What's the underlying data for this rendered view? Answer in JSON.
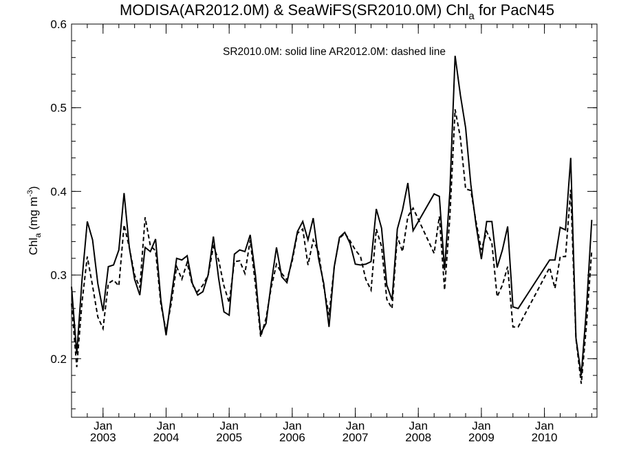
{
  "chart_data": {
    "type": "line",
    "title": {
      "prefix": "MODISA(AR2012.0M) & SeaWiFS(SR2010.0M)  Chl",
      "sub": "a",
      "suffix": " for PacN45"
    },
    "ylabel": {
      "main": "Chl",
      "sub": "a",
      "unit": " (mg m",
      "sup": "-3",
      "close": ")"
    },
    "annotation": "SR2010.0M: solid line   AR2012.0M: dashed line",
    "ylim": [
      0.13,
      0.6
    ],
    "yticks": [
      0.2,
      0.3,
      0.4,
      0.5,
      0.6
    ],
    "ytick_labels": [
      "0.2",
      "0.3",
      "0.4",
      "0.5",
      "0.6"
    ],
    "xlim": [
      "2002-07",
      "2010-11"
    ],
    "xticks": [
      {
        "month": "Jan",
        "year": "2003",
        "date": "2003-01"
      },
      {
        "month": "Jan",
        "year": "2004",
        "date": "2004-01"
      },
      {
        "month": "Jan",
        "year": "2005",
        "date": "2005-01"
      },
      {
        "month": "Jan",
        "year": "2006",
        "date": "2006-01"
      },
      {
        "month": "Jan",
        "year": "2007",
        "date": "2007-01"
      },
      {
        "month": "Jan",
        "year": "2008",
        "date": "2008-01"
      },
      {
        "month": "Jan",
        "year": "2009",
        "date": "2009-01"
      },
      {
        "month": "Jan",
        "year": "2010",
        "date": "2010-01"
      }
    ],
    "series": [
      {
        "name": "SR2010.0M",
        "style": "solid",
        "color": "#000000",
        "points": [
          [
            "2002-07",
            0.286
          ],
          [
            "2002-08",
            0.206
          ],
          [
            "2002-09",
            0.295
          ],
          [
            "2002-10",
            0.364
          ],
          [
            "2002-11",
            0.342
          ],
          [
            "2002-12",
            0.29
          ],
          [
            "2003-01",
            0.257
          ],
          [
            "2003-02",
            0.31
          ],
          [
            "2003-03",
            0.312
          ],
          [
            "2003-04",
            0.33
          ],
          [
            "2003-05",
            0.398
          ],
          [
            "2003-06",
            0.333
          ],
          [
            "2003-07",
            0.295
          ],
          [
            "2003-08",
            0.276
          ],
          [
            "2003-09",
            0.333
          ],
          [
            "2003-10",
            0.328
          ],
          [
            "2003-11",
            0.343
          ],
          [
            "2003-12",
            0.27
          ],
          [
            "2004-01",
            0.228
          ],
          [
            "2004-02",
            0.275
          ],
          [
            "2004-03",
            0.32
          ],
          [
            "2004-04",
            0.318
          ],
          [
            "2004-05",
            0.323
          ],
          [
            "2004-06",
            0.29
          ],
          [
            "2004-07",
            0.276
          ],
          [
            "2004-08",
            0.28
          ],
          [
            "2004-09",
            0.3
          ],
          [
            "2004-10",
            0.346
          ],
          [
            "2004-11",
            0.296
          ],
          [
            "2004-12",
            0.256
          ],
          [
            "2005-01",
            0.252
          ],
          [
            "2005-02",
            0.325
          ],
          [
            "2005-03",
            0.33
          ],
          [
            "2005-04",
            0.328
          ],
          [
            "2005-05",
            0.348
          ],
          [
            "2005-06",
            0.3
          ],
          [
            "2005-07",
            0.23
          ],
          [
            "2005-08",
            0.242
          ],
          [
            "2005-09",
            0.29
          ],
          [
            "2005-10",
            0.333
          ],
          [
            "2005-11",
            0.298
          ],
          [
            "2005-12",
            0.291
          ],
          [
            "2006-01",
            0.32
          ],
          [
            "2006-02",
            0.352
          ],
          [
            "2006-03",
            0.364
          ],
          [
            "2006-04",
            0.342
          ],
          [
            "2006-05",
            0.368
          ],
          [
            "2006-06",
            0.32
          ],
          [
            "2006-07",
            0.29
          ],
          [
            "2006-08",
            0.238
          ],
          [
            "2006-09",
            0.31
          ],
          [
            "2006-10",
            0.345
          ],
          [
            "2006-11",
            0.351
          ],
          [
            "2006-12",
            0.338
          ],
          [
            "2007-01",
            0.313
          ],
          [
            "2007-02",
            0.312
          ],
          [
            "2007-03",
            0.313
          ],
          [
            "2007-04",
            0.316
          ],
          [
            "2007-05",
            0.379
          ],
          [
            "2007-06",
            0.356
          ],
          [
            "2007-07",
            0.288
          ],
          [
            "2007-08",
            0.27
          ],
          [
            "2007-09",
            0.355
          ],
          [
            "2007-10",
            0.378
          ],
          [
            "2007-11",
            0.41
          ],
          [
            "2007-12",
            0.353
          ],
          [
            "2008-04",
            0.397
          ],
          [
            "2008-05",
            0.394
          ],
          [
            "2008-06",
            0.306
          ],
          [
            "2008-07",
            0.4
          ],
          [
            "2008-08",
            0.562
          ],
          [
            "2008-09",
            0.515
          ],
          [
            "2008-10",
            0.476
          ],
          [
            "2008-11",
            0.408
          ],
          [
            "2008-12",
            0.359
          ],
          [
            "2009-01",
            0.319
          ],
          [
            "2009-02",
            0.364
          ],
          [
            "2009-03",
            0.364
          ],
          [
            "2009-04",
            0.309
          ],
          [
            "2009-05",
            0.33
          ],
          [
            "2009-06",
            0.358
          ],
          [
            "2009-07",
            0.262
          ],
          [
            "2009-08",
            0.26
          ],
          [
            "2010-02",
            0.318
          ],
          [
            "2010-03",
            0.318
          ],
          [
            "2010-04",
            0.357
          ],
          [
            "2010-05",
            0.354
          ],
          [
            "2010-06",
            0.44
          ],
          [
            "2010-07",
            0.225
          ],
          [
            "2010-08",
            0.18
          ],
          [
            "2010-09",
            0.26
          ],
          [
            "2010-10",
            0.366
          ]
        ]
      },
      {
        "name": "AR2012.0M",
        "style": "dashed",
        "color": "#000000",
        "points": [
          [
            "2002-07",
            0.266
          ],
          [
            "2002-08",
            0.19
          ],
          [
            "2002-09",
            0.268
          ],
          [
            "2002-10",
            0.322
          ],
          [
            "2002-11",
            0.287
          ],
          [
            "2002-12",
            0.25
          ],
          [
            "2003-01",
            0.236
          ],
          [
            "2003-02",
            0.29
          ],
          [
            "2003-03",
            0.294
          ],
          [
            "2003-04",
            0.287
          ],
          [
            "2003-05",
            0.36
          ],
          [
            "2003-06",
            0.333
          ],
          [
            "2003-07",
            0.3
          ],
          [
            "2003-08",
            0.285
          ],
          [
            "2003-09",
            0.369
          ],
          [
            "2003-10",
            0.335
          ],
          [
            "2003-11",
            0.329
          ],
          [
            "2003-12",
            0.265
          ],
          [
            "2004-01",
            0.233
          ],
          [
            "2004-02",
            0.267
          ],
          [
            "2004-03",
            0.31
          ],
          [
            "2004-04",
            0.295
          ],
          [
            "2004-05",
            0.315
          ],
          [
            "2004-06",
            0.288
          ],
          [
            "2004-07",
            0.28
          ],
          [
            "2004-08",
            0.288
          ],
          [
            "2004-09",
            0.3
          ],
          [
            "2004-10",
            0.334
          ],
          [
            "2004-11",
            0.318
          ],
          [
            "2004-12",
            0.287
          ],
          [
            "2005-01",
            0.267
          ],
          [
            "2005-02",
            0.316
          ],
          [
            "2005-03",
            0.317
          ],
          [
            "2005-04",
            0.302
          ],
          [
            "2005-05",
            0.342
          ],
          [
            "2005-06",
            0.288
          ],
          [
            "2005-07",
            0.226
          ],
          [
            "2005-08",
            0.248
          ],
          [
            "2005-09",
            0.285
          ],
          [
            "2005-10",
            0.313
          ],
          [
            "2005-11",
            0.302
          ],
          [
            "2005-12",
            0.294
          ],
          [
            "2006-01",
            0.317
          ],
          [
            "2006-02",
            0.35
          ],
          [
            "2006-03",
            0.355
          ],
          [
            "2006-04",
            0.312
          ],
          [
            "2006-05",
            0.342
          ],
          [
            "2006-06",
            0.328
          ],
          [
            "2006-07",
            0.286
          ],
          [
            "2006-08",
            0.252
          ],
          [
            "2006-09",
            0.31
          ],
          [
            "2006-10",
            0.344
          ],
          [
            "2006-11",
            0.35
          ],
          [
            "2006-12",
            0.341
          ],
          [
            "2007-01",
            0.33
          ],
          [
            "2007-02",
            0.322
          ],
          [
            "2007-03",
            0.295
          ],
          [
            "2007-04",
            0.282
          ],
          [
            "2007-05",
            0.355
          ],
          [
            "2007-06",
            0.334
          ],
          [
            "2007-07",
            0.271
          ],
          [
            "2007-08",
            0.26
          ],
          [
            "2007-09",
            0.346
          ],
          [
            "2007-10",
            0.328
          ],
          [
            "2007-11",
            0.37
          ],
          [
            "2007-12",
            0.38
          ],
          [
            "2008-04",
            0.326
          ],
          [
            "2008-05",
            0.37
          ],
          [
            "2008-06",
            0.282
          ],
          [
            "2008-07",
            0.37
          ],
          [
            "2008-08",
            0.498
          ],
          [
            "2008-09",
            0.464
          ],
          [
            "2008-10",
            0.403
          ],
          [
            "2008-11",
            0.401
          ],
          [
            "2008-12",
            0.363
          ],
          [
            "2009-01",
            0.33
          ],
          [
            "2009-02",
            0.352
          ],
          [
            "2009-03",
            0.338
          ],
          [
            "2009-04",
            0.274
          ],
          [
            "2009-05",
            0.288
          ],
          [
            "2009-06",
            0.31
          ],
          [
            "2009-07",
            0.238
          ],
          [
            "2009-08",
            0.238
          ],
          [
            "2010-02",
            0.309
          ],
          [
            "2010-03",
            0.284
          ],
          [
            "2010-04",
            0.322
          ],
          [
            "2010-05",
            0.322
          ],
          [
            "2010-06",
            0.402
          ],
          [
            "2010-07",
            0.224
          ],
          [
            "2010-08",
            0.17
          ],
          [
            "2010-09",
            0.24
          ],
          [
            "2010-10",
            0.33
          ]
        ]
      }
    ]
  }
}
